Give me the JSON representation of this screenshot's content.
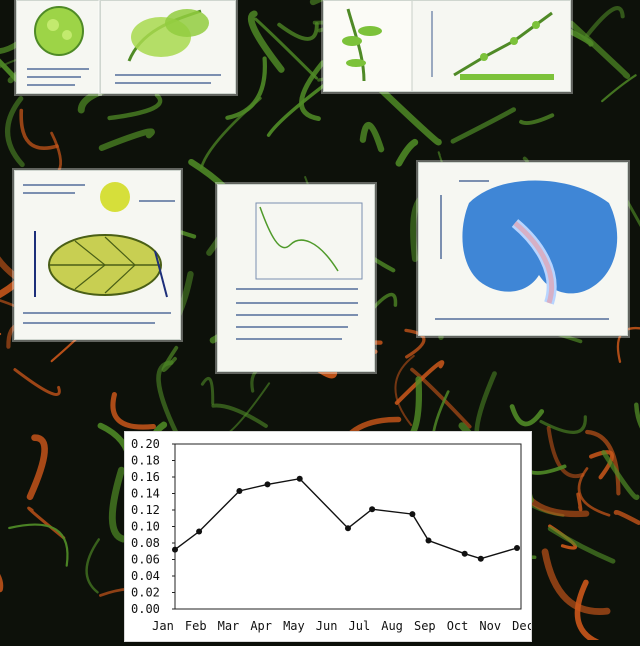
{
  "colors": {
    "leaf_green": "#7cc23a",
    "vein_orange": "#c8561a",
    "vein_green": "#4f8a26",
    "chart_line": "#111111",
    "blue_specimen": "#3f86d6"
  },
  "background": {
    "description_icon": "vein-network-background"
  },
  "cards": [
    {
      "name": "specimen-card-moss-cluster",
      "icon": "moss-illustration-icon"
    },
    {
      "name": "specimen-card-plant-stem",
      "icon": "stem-illustration-icon"
    },
    {
      "name": "specimen-card-branch",
      "icon": "branch-illustration-icon"
    },
    {
      "name": "specimen-card-leaf-section",
      "icon": "leaf-cross-section-icon"
    },
    {
      "name": "specimen-card-line-plot",
      "icon": "mini-line-plot-icon"
    },
    {
      "name": "specimen-card-blue-organism",
      "icon": "blue-organism-icon"
    }
  ],
  "chart_data": {
    "type": "line",
    "categories": [
      "Jan",
      "Feb",
      "Mar",
      "Apr",
      "May",
      "Jun",
      "Jul",
      "Aug",
      "Sep",
      "Oct",
      "Nov",
      "Dec"
    ],
    "y_tick_labels": [
      "0.20",
      "0.18",
      "0.16",
      "0.14",
      "0.12",
      "0.10",
      "0.08",
      "0.06",
      "0.04",
      "0.02",
      "0.00"
    ],
    "ylim": [
      0,
      0.2
    ],
    "x": [
      0,
      0.6,
      1.6,
      2.3,
      3.1,
      4.3,
      4.9,
      5.9,
      6.3,
      7.2,
      7.6,
      8.5
    ],
    "values": [
      0.072,
      0.094,
      0.143,
      0.151,
      0.158,
      0.098,
      0.121,
      0.115,
      0.083,
      0.067,
      0.061,
      0.074
    ],
    "grid": false
  },
  "watermark_text": ""
}
